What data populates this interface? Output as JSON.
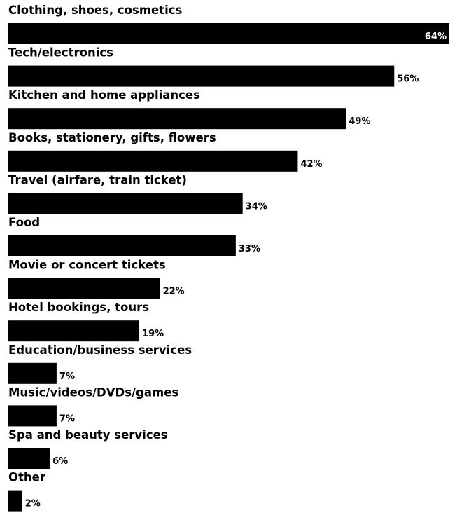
{
  "chart_data": {
    "type": "bar",
    "orientation": "horizontal",
    "categories": [
      "Clothing, shoes, cosmetics",
      "Tech/electronics",
      "Kitchen and home appliances",
      "Books, stationery, gifts, flowers",
      "Travel (airfare, train ticket)",
      "Food",
      "Movie or concert tickets",
      "Hotel bookings, tours",
      "Education/business services",
      "Music/videos/DVDs/games",
      "Spa and beauty services",
      "Other"
    ],
    "values": [
      64,
      56,
      49,
      42,
      34,
      33,
      22,
      19,
      7,
      7,
      6,
      2
    ],
    "value_labels": [
      "64%",
      "56%",
      "49%",
      "42%",
      "34%",
      "33%",
      "22%",
      "19%",
      "7%",
      "7%",
      "6%",
      "2%"
    ],
    "unit": "%",
    "xlim": [
      0,
      64
    ],
    "grid": false,
    "legend": "none",
    "colors": {
      "bar": "#000000",
      "label_on_bar": "#ffffff",
      "label": "#000000"
    }
  }
}
